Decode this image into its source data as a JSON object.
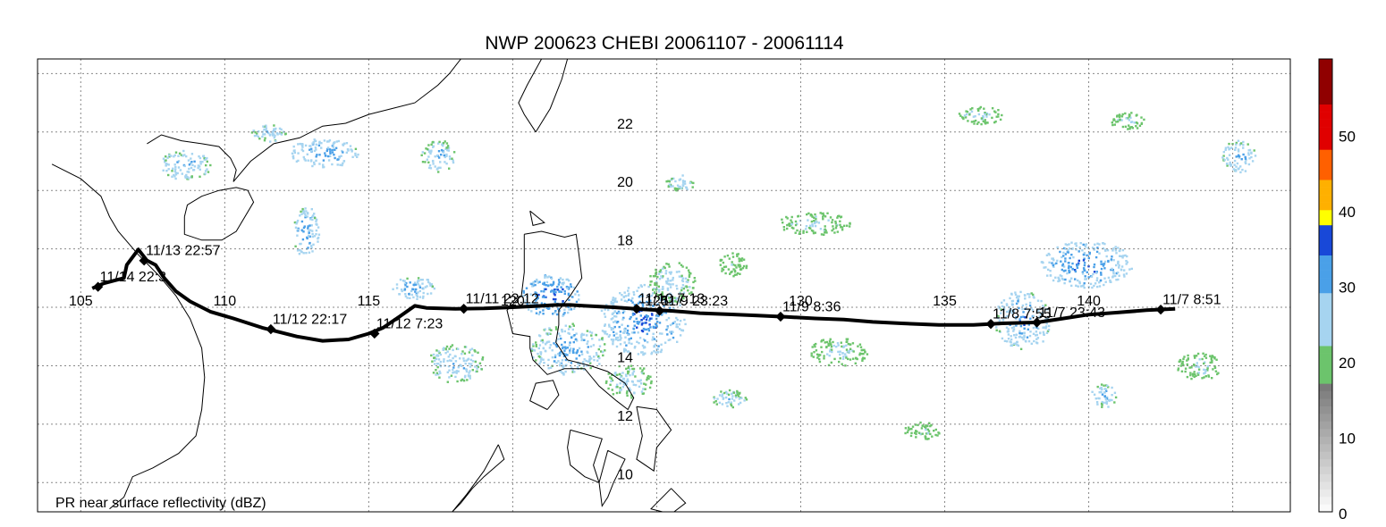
{
  "title": "NWP 200623 CHEBI 20061107 - 20061114",
  "footnote": "PR near surface reflectivity (dBZ)",
  "axes": {
    "lon_range": [
      103.5,
      147
    ],
    "lat_range": [
      9.0,
      24.5
    ],
    "lon_grid": [
      105,
      110,
      115,
      120,
      125,
      130,
      135,
      140,
      145
    ],
    "lat_grid": [
      10,
      12,
      14,
      16,
      18,
      20,
      22,
      24
    ],
    "lon_labels": [
      {
        "value": 105,
        "text": "105"
      },
      {
        "value": 110,
        "text": "110"
      },
      {
        "value": 115,
        "text": "115"
      },
      {
        "value": 120,
        "text": "120"
      },
      {
        "value": 125,
        "text": "125"
      },
      {
        "value": 130,
        "text": "130"
      },
      {
        "value": 135,
        "text": "135"
      },
      {
        "value": 140,
        "text": "140"
      }
    ],
    "lat_labels": [
      {
        "value": 10,
        "text": "10"
      },
      {
        "value": 12,
        "text": "12"
      },
      {
        "value": 14,
        "text": "14"
      },
      {
        "value": 18,
        "text": "18"
      },
      {
        "value": 20,
        "text": "20"
      },
      {
        "value": 22,
        "text": "22"
      }
    ],
    "lat_label_lon": 123.9,
    "lon_label_lat": 16.0
  },
  "track": {
    "color": "#000000",
    "line": [
      [
        143.0,
        15.95
      ],
      [
        142.0,
        15.9
      ],
      [
        141.0,
        15.82
      ],
      [
        140.0,
        15.75
      ],
      [
        139.0,
        15.6
      ],
      [
        138.2,
        15.48
      ],
      [
        137.0,
        15.45
      ],
      [
        136.0,
        15.4
      ],
      [
        134.8,
        15.4
      ],
      [
        133.5,
        15.45
      ],
      [
        132.5,
        15.5
      ],
      [
        131.5,
        15.58
      ],
      [
        130.5,
        15.62
      ],
      [
        129.5,
        15.67
      ],
      [
        128.5,
        15.72
      ],
      [
        127.5,
        15.76
      ],
      [
        126.5,
        15.8
      ],
      [
        125.5,
        15.88
      ],
      [
        124.5,
        15.93
      ],
      [
        123.5,
        16.0
      ],
      [
        122.5,
        16.05
      ],
      [
        122.0,
        16.08
      ],
      [
        121.5,
        16.08
      ],
      [
        121.0,
        16.05
      ],
      [
        120.0,
        16.0
      ],
      [
        119.0,
        15.96
      ],
      [
        118.0,
        15.95
      ],
      [
        117.0,
        15.98
      ],
      [
        116.6,
        16.05
      ],
      [
        116.1,
        15.7
      ],
      [
        115.5,
        15.3
      ],
      [
        115.0,
        15.1
      ],
      [
        114.3,
        14.9
      ],
      [
        113.4,
        14.85
      ],
      [
        112.5,
        15.0
      ],
      [
        111.3,
        15.3
      ],
      [
        110.3,
        15.62
      ],
      [
        109.5,
        15.85
      ],
      [
        108.8,
        16.2
      ],
      [
        108.3,
        16.55
      ],
      [
        107.9,
        17.0
      ],
      [
        107.6,
        17.45
      ],
      [
        107.3,
        17.6
      ],
      [
        107.0,
        17.98
      ],
      [
        106.6,
        17.45
      ],
      [
        106.5,
        17.0
      ],
      [
        105.8,
        16.82
      ],
      [
        105.4,
        16.65
      ]
    ],
    "points": [
      {
        "label": "11/7 8:51",
        "lon": 142.5,
        "lat": 15.92
      },
      {
        "label": "11/7 23:43",
        "lon": 138.2,
        "lat": 15.48
      },
      {
        "label": "11/8 7:55",
        "lon": 136.6,
        "lat": 15.43
      },
      {
        "label": "11/9 8:36",
        "lon": 129.3,
        "lat": 15.68
      },
      {
        "label": "11/9 23:23",
        "lon": 125.1,
        "lat": 15.88
      },
      {
        "label": "11/10 7:13",
        "lon": 124.3,
        "lat": 15.95
      },
      {
        "label": "11/11 23:12",
        "lon": 118.3,
        "lat": 15.95
      },
      {
        "label": "11/12 7:23",
        "lon": 115.2,
        "lat": 15.1
      },
      {
        "label": "11/12 22:17",
        "lon": 111.6,
        "lat": 15.25
      },
      {
        "label": "11/13 22:57",
        "lon": 107.2,
        "lat": 17.6
      },
      {
        "label": "11/14 22:3",
        "lon": 105.6,
        "lat": 16.7
      }
    ]
  },
  "colorbar": {
    "vmin": 0,
    "vmax": 60,
    "ticks": [
      "0",
      "10",
      "20",
      "30",
      "40",
      "50"
    ],
    "bands": [
      {
        "from": 0,
        "to": 17,
        "color": "#f0f0f0"
      },
      {
        "from": 17,
        "to": 22,
        "color": "#6cc46c"
      },
      {
        "from": 22,
        "to": 29,
        "color": "#a6d4f0"
      },
      {
        "from": 29,
        "to": 34,
        "color": "#4aa0e8"
      },
      {
        "from": 34,
        "to": 38,
        "color": "#1848d8"
      },
      {
        "from": 38,
        "to": 40,
        "color": "#ffff00"
      },
      {
        "from": 40,
        "to": 44,
        "color": "#ffb000"
      },
      {
        "from": 44,
        "to": 48,
        "color": "#ff6000"
      },
      {
        "from": 48,
        "to": 54,
        "color": "#e00000"
      },
      {
        "from": 54,
        "to": 60,
        "color": "#900000"
      }
    ]
  },
  "coastlines": [
    [
      [
        107.3,
        21.6
      ],
      [
        107.8,
        21.9
      ],
      [
        108.5,
        21.7
      ],
      [
        109.2,
        21.6
      ],
      [
        109.8,
        21.5
      ],
      [
        110.2,
        21.1
      ],
      [
        110.4,
        20.7
      ],
      [
        110.3,
        20.3
      ],
      [
        110.9,
        21.0
      ],
      [
        111.7,
        21.6
      ],
      [
        112.6,
        21.8
      ],
      [
        113.4,
        22.2
      ],
      [
        114.2,
        22.3
      ],
      [
        115.0,
        22.6
      ],
      [
        115.8,
        22.8
      ],
      [
        116.6,
        23.0
      ],
      [
        117.4,
        23.6
      ],
      [
        117.8,
        24.0
      ],
      [
        118.2,
        24.5
      ]
    ],
    [
      [
        108.6,
        19.1
      ],
      [
        108.6,
        18.5
      ],
      [
        109.2,
        18.3
      ],
      [
        109.9,
        18.3
      ],
      [
        110.4,
        18.6
      ],
      [
        111.0,
        19.6
      ],
      [
        110.8,
        20.0
      ],
      [
        110.4,
        20.1
      ],
      [
        109.8,
        20.0
      ],
      [
        109.2,
        19.8
      ],
      [
        108.7,
        19.5
      ],
      [
        108.6,
        19.1
      ]
    ],
    [
      [
        104.0,
        20.9
      ],
      [
        105.0,
        20.4
      ],
      [
        105.7,
        19.8
      ],
      [
        106.0,
        19.1
      ],
      [
        106.3,
        18.6
      ],
      [
        107.0,
        17.8
      ],
      [
        107.7,
        17.1
      ],
      [
        108.3,
        16.4
      ],
      [
        108.8,
        15.6
      ],
      [
        109.2,
        14.6
      ],
      [
        109.3,
        13.6
      ],
      [
        109.2,
        12.5
      ],
      [
        109.0,
        11.6
      ],
      [
        108.4,
        11.0
      ],
      [
        107.5,
        10.5
      ],
      [
        106.8,
        10.2
      ],
      [
        106.5,
        9.5
      ],
      [
        106.0,
        9.1
      ]
    ],
    [
      [
        120.4,
        18.5
      ],
      [
        121.0,
        18.6
      ],
      [
        121.8,
        18.4
      ],
      [
        122.2,
        18.5
      ],
      [
        122.3,
        17.8
      ],
      [
        122.4,
        17.0
      ],
      [
        122.0,
        16.4
      ],
      [
        121.6,
        15.9
      ],
      [
        121.6,
        15.4
      ],
      [
        121.5,
        14.8
      ],
      [
        121.9,
        14.2
      ],
      [
        122.7,
        14.0
      ],
      [
        123.3,
        13.8
      ],
      [
        123.9,
        13.4
      ],
      [
        124.2,
        12.9
      ],
      [
        124.0,
        12.5
      ],
      [
        123.6,
        12.8
      ],
      [
        123.0,
        13.3
      ],
      [
        122.5,
        13.9
      ],
      [
        121.8,
        13.9
      ],
      [
        121.2,
        13.7
      ],
      [
        120.7,
        14.2
      ],
      [
        120.6,
        14.6
      ],
      [
        120.6,
        15.0
      ],
      [
        120.0,
        15.1
      ],
      [
        119.8,
        15.9
      ],
      [
        120.3,
        16.4
      ],
      [
        120.4,
        17.2
      ],
      [
        120.4,
        18.5
      ]
    ],
    [
      [
        124.3,
        12.6
      ],
      [
        125.0,
        12.5
      ],
      [
        125.5,
        11.8
      ],
      [
        125.0,
        11.2
      ],
      [
        124.9,
        10.4
      ],
      [
        124.3,
        10.8
      ],
      [
        124.5,
        11.6
      ],
      [
        124.3,
        12.6
      ]
    ],
    [
      [
        121.2,
        12.5
      ],
      [
        121.6,
        13.0
      ],
      [
        121.4,
        13.5
      ],
      [
        120.8,
        13.4
      ],
      [
        120.6,
        12.8
      ],
      [
        121.2,
        12.5
      ]
    ],
    [
      [
        122.0,
        11.8
      ],
      [
        123.1,
        11.5
      ],
      [
        122.8,
        10.6
      ],
      [
        123.0,
        10.0
      ],
      [
        122.5,
        10.2
      ],
      [
        122.0,
        10.6
      ],
      [
        121.9,
        11.2
      ],
      [
        122.0,
        11.8
      ]
    ],
    [
      [
        123.3,
        11.1
      ],
      [
        123.9,
        10.8
      ],
      [
        123.5,
        10.0
      ],
      [
        123.3,
        9.5
      ],
      [
        123.1,
        9.2
      ],
      [
        123.0,
        10.0
      ],
      [
        123.3,
        11.1
      ]
    ],
    [
      [
        119.5,
        11.3
      ],
      [
        119.7,
        10.8
      ],
      [
        119.0,
        10.2
      ],
      [
        118.6,
        9.8
      ],
      [
        118.2,
        9.3
      ],
      [
        117.9,
        9.0
      ],
      [
        118.4,
        9.6
      ],
      [
        119.0,
        10.4
      ],
      [
        119.5,
        11.3
      ]
    ],
    [
      [
        125.5,
        9.8
      ],
      [
        126.0,
        9.3
      ],
      [
        125.6,
        9.0
      ],
      [
        125.2,
        9.0
      ],
      [
        124.8,
        9.1
      ],
      [
        125.5,
        9.8
      ]
    ],
    [
      [
        120.6,
        19.3
      ],
      [
        121.1,
        18.9
      ],
      [
        120.7,
        18.8
      ],
      [
        120.6,
        19.3
      ]
    ],
    [
      [
        120.8,
        22.0
      ],
      [
        121.3,
        22.8
      ],
      [
        121.7,
        23.8
      ],
      [
        121.9,
        24.5
      ]
    ],
    [
      [
        121.0,
        24.5
      ],
      [
        120.5,
        23.6
      ],
      [
        120.2,
        23.0
      ],
      [
        120.4,
        22.6
      ],
      [
        120.8,
        22.0
      ]
    ]
  ],
  "rain_cells": [
    {
      "lon": 108.6,
      "lat": 20.9,
      "w": 1.8,
      "h": 1.0,
      "level": 31
    },
    {
      "lon": 113.4,
      "lat": 21.3,
      "w": 2.4,
      "h": 1.0,
      "level": 34
    },
    {
      "lon": 111.5,
      "lat": 22.0,
      "w": 1.2,
      "h": 0.6,
      "level": 30
    },
    {
      "lon": 112.8,
      "lat": 18.6,
      "w": 0.9,
      "h": 1.8,
      "level": 33
    },
    {
      "lon": 117.4,
      "lat": 21.2,
      "w": 1.2,
      "h": 1.1,
      "level": 31
    },
    {
      "lon": 116.5,
      "lat": 16.7,
      "w": 1.5,
      "h": 0.8,
      "level": 33
    },
    {
      "lon": 121.3,
      "lat": 16.4,
      "w": 2.0,
      "h": 1.5,
      "level": 37
    },
    {
      "lon": 118.0,
      "lat": 14.1,
      "w": 2.0,
      "h": 1.3,
      "level": 30
    },
    {
      "lon": 121.9,
      "lat": 14.6,
      "w": 2.6,
      "h": 1.8,
      "level": 32
    },
    {
      "lon": 124.5,
      "lat": 15.6,
      "w": 3.0,
      "h": 2.4,
      "level": 35
    },
    {
      "lon": 125.5,
      "lat": 16.9,
      "w": 1.6,
      "h": 1.4,
      "level": 28
    },
    {
      "lon": 124.0,
      "lat": 13.5,
      "w": 1.6,
      "h": 1.2,
      "level": 28
    },
    {
      "lon": 125.8,
      "lat": 20.3,
      "w": 1.0,
      "h": 0.6,
      "level": 29
    },
    {
      "lon": 139.9,
      "lat": 17.5,
      "w": 3.2,
      "h": 1.6,
      "level": 35
    },
    {
      "lon": 137.7,
      "lat": 15.6,
      "w": 2.0,
      "h": 2.0,
      "level": 33
    },
    {
      "lon": 140.5,
      "lat": 13.0,
      "w": 0.9,
      "h": 0.8,
      "level": 31
    },
    {
      "lon": 145.2,
      "lat": 21.2,
      "w": 1.2,
      "h": 1.1,
      "level": 32
    },
    {
      "lon": 136.2,
      "lat": 22.6,
      "w": 1.6,
      "h": 0.6,
      "level": 27
    },
    {
      "lon": 130.4,
      "lat": 18.9,
      "w": 2.6,
      "h": 0.8,
      "level": 26
    },
    {
      "lon": 131.3,
      "lat": 14.5,
      "w": 2.0,
      "h": 1.0,
      "level": 26
    },
    {
      "lon": 127.5,
      "lat": 12.9,
      "w": 1.2,
      "h": 0.6,
      "level": 29
    },
    {
      "lon": 143.8,
      "lat": 14.0,
      "w": 1.5,
      "h": 1.0,
      "level": 25
    },
    {
      "lon": 134.2,
      "lat": 11.8,
      "w": 1.3,
      "h": 0.6,
      "level": 24
    },
    {
      "lon": 141.3,
      "lat": 22.4,
      "w": 1.2,
      "h": 0.6,
      "level": 26
    },
    {
      "lon": 127.6,
      "lat": 17.5,
      "w": 1.0,
      "h": 0.8,
      "level": 24
    }
  ]
}
